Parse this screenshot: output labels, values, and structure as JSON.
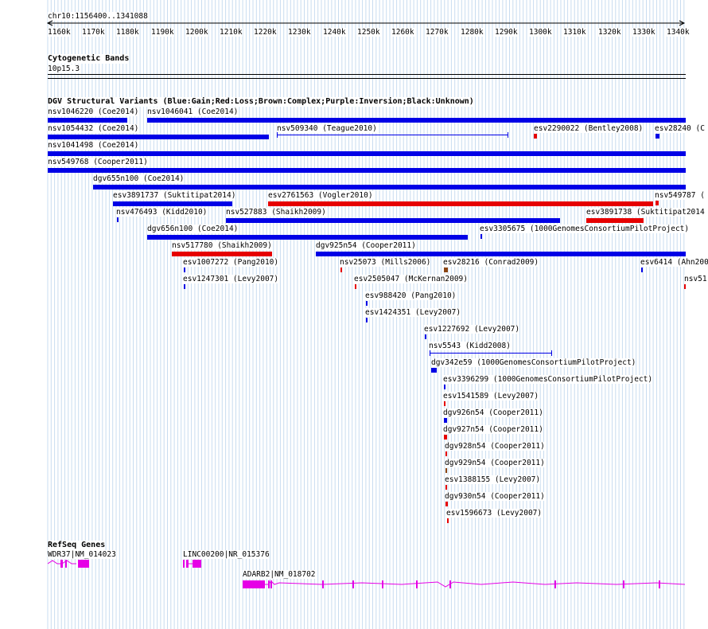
{
  "browser": {
    "position": "chr10:1156400..1341088",
    "ruler_ticks": [
      "1160k",
      "1170k",
      "1180k",
      "1190k",
      "1200k",
      "1210k",
      "1220k",
      "1230k",
      "1240k",
      "1250k",
      "1260k",
      "1270k",
      "1280k",
      "1290k",
      "1300k",
      "1310k",
      "1320k",
      "1330k",
      "1340k"
    ]
  },
  "cytoband_track": {
    "title": "Cytogenetic Bands",
    "band_label": "10p15.3"
  },
  "dgv_track": {
    "title": "DGV Structural Variants (Blue:Gain;Red:Loss;Brown:Complex;Purple:Inversion;Black:Unknown)",
    "colors": {
      "gain": "#0000e6",
      "loss": "#e60000",
      "complex": "#8b4513",
      "inversion": "#800080",
      "unknown": "#000000"
    },
    "variants": [
      {
        "label": "nsv1046220 (Coe2014)",
        "type": "gain",
        "style": "thick"
      },
      {
        "label": "nsv1046041 (Coe2014)",
        "type": "gain",
        "style": "thick"
      },
      {
        "label": "nsv1054432 (Coe2014)",
        "type": "gain",
        "style": "thick"
      },
      {
        "label": "nsv509340 (Teague2010)",
        "type": "gain",
        "style": "line"
      },
      {
        "label": "esv2290022 (Bentley2008)",
        "type": "loss",
        "style": "thick"
      },
      {
        "label": "esv28240 (C",
        "type": "gain",
        "style": "thick"
      },
      {
        "label": "nsv1041498 (Coe2014)",
        "type": "gain",
        "style": "thick"
      },
      {
        "label": "nsv549768 (Cooper2011)",
        "type": "gain",
        "style": "thick"
      },
      {
        "label": "dgv655n100 (Coe2014)",
        "type": "gain",
        "style": "thick"
      },
      {
        "label": "esv3891737 (Suktitipat2014)",
        "type": "gain",
        "style": "thick"
      },
      {
        "label": "esv2761563 (Vogler2010)",
        "type": "loss",
        "style": "thick"
      },
      {
        "label": "nsv549787 (",
        "type": "loss",
        "style": "thick"
      },
      {
        "label": "nsv476493 (Kidd2010)",
        "type": "gain",
        "style": "tick"
      },
      {
        "label": "nsv527883 (Shaikh2009)",
        "type": "gain",
        "style": "thick"
      },
      {
        "label": "esv3891738 (Suktitipat2014",
        "type": "loss",
        "style": "thick"
      },
      {
        "label": "dgv656n100 (Coe2014)",
        "type": "gain",
        "style": "thick"
      },
      {
        "label": "esv3305675 (1000GenomesConsortiumPilotProject)",
        "type": "gain",
        "style": "tick"
      },
      {
        "label": "nsv517780 (Shaikh2009)",
        "type": "loss",
        "style": "thick"
      },
      {
        "label": "dgv925n54 (Cooper2011)",
        "type": "gain",
        "style": "thick"
      },
      {
        "label": "esv1007272 (Pang2010)",
        "type": "gain",
        "style": "tick"
      },
      {
        "label": "nsv25073 (Mills2006)",
        "type": "loss",
        "style": "tick"
      },
      {
        "label": "esv28216 (Conrad2009)",
        "type": "complex",
        "style": "box"
      },
      {
        "label": "esv6414 (Ahn200",
        "type": "gain",
        "style": "tick"
      },
      {
        "label": "esv1247301 (Levy2007)",
        "type": "gain",
        "style": "tick"
      },
      {
        "label": "esv2505047 (McKernan2009)",
        "type": "loss",
        "style": "tick"
      },
      {
        "label": "nsv51",
        "type": "loss",
        "style": "tick"
      },
      {
        "label": "esv988420 (Pang2010)",
        "type": "gain",
        "style": "tick"
      },
      {
        "label": "esv1424351 (Levy2007)",
        "type": "gain",
        "style": "tick"
      },
      {
        "label": "esv1227692 (Levy2007)",
        "type": "gain",
        "style": "tick"
      },
      {
        "label": "nsv5543 (Kidd2008)",
        "type": "gain",
        "style": "line"
      },
      {
        "label": "dgv342e59 (1000GenomesConsortiumPilotProject)",
        "type": "gain",
        "style": "box"
      },
      {
        "label": "esv3396299 (1000GenomesConsortiumPilotProject)",
        "type": "gain",
        "style": "tick"
      },
      {
        "label": "esv1541589 (Levy2007)",
        "type": "loss",
        "style": "tick"
      },
      {
        "label": "dgv926n54 (Cooper2011)",
        "type": "gain",
        "style": "box"
      },
      {
        "label": "dgv927n54 (Cooper2011)",
        "type": "loss",
        "style": "box"
      },
      {
        "label": "dgv928n54 (Cooper2011)",
        "type": "loss",
        "style": "tick"
      },
      {
        "label": "dgv929n54 (Cooper2011)",
        "type": "complex",
        "style": "tick"
      },
      {
        "label": "esv1388155 (Levy2007)",
        "type": "loss",
        "style": "tick"
      },
      {
        "label": "dgv930n54 (Cooper2011)",
        "type": "loss",
        "style": "tick"
      },
      {
        "label": "esv1596673 (Levy2007)",
        "type": "loss",
        "style": "tick"
      }
    ]
  },
  "refseq_track": {
    "title": "RefSeq Genes",
    "color": "#e600e6",
    "genes": [
      {
        "label": "WDR37|NM_014023"
      },
      {
        "label": "LINC00200|NR_015376"
      },
      {
        "label": "ADARB2|NM_018702"
      }
    ]
  }
}
